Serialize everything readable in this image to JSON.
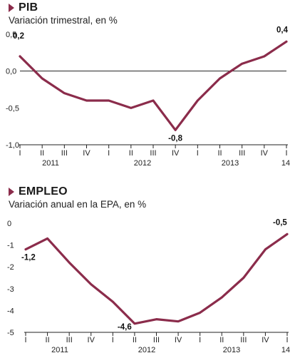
{
  "chart_data": [
    {
      "type": "line",
      "title": "PIB",
      "subtitle": "Variación trimestral, en %",
      "categories": [
        "I",
        "II",
        "III",
        "IV",
        "I",
        "II",
        "III",
        "IV",
        "I",
        "II",
        "III",
        "IV",
        "I"
      ],
      "years": [
        "2011",
        "2012",
        "2013",
        "14"
      ],
      "values": [
        0.2,
        -0.1,
        -0.3,
        -0.4,
        -0.4,
        -0.5,
        -0.4,
        -0.8,
        -0.4,
        -0.1,
        0.1,
        0.2,
        0.4
      ],
      "ylim": [
        -1.0,
        0.5
      ],
      "yticks": [
        0.5,
        0.0,
        -0.5,
        -1.0
      ],
      "ytick_labels": [
        "0,5",
        "0,0",
        "-0,5",
        "-1,0"
      ],
      "zero_line": true,
      "grid": false,
      "annotations": [
        {
          "index": 0,
          "text": "0,2"
        },
        {
          "index": 7,
          "text": "-0,8"
        },
        {
          "index": 12,
          "text": "0,4"
        }
      ],
      "line_color": "#8b2c4b"
    },
    {
      "type": "line",
      "title": "EMPLEO",
      "subtitle": "Variación anual en la EPA, en %",
      "categories": [
        "I",
        "II",
        "III",
        "IV",
        "I",
        "II",
        "III",
        "IV",
        "I",
        "II",
        "III",
        "IV",
        "I"
      ],
      "years": [
        "2011",
        "2012",
        "2013",
        "14"
      ],
      "values": [
        -1.2,
        -0.7,
        -1.8,
        -2.8,
        -3.6,
        -4.6,
        -4.4,
        -4.5,
        -4.1,
        -3.4,
        -2.5,
        -1.2,
        -0.5
      ],
      "ylim": [
        -5,
        0
      ],
      "yticks": [
        0,
        -1,
        -2,
        -3,
        -4,
        -5
      ],
      "ytick_labels": [
        "0",
        "-1",
        "-2",
        "-3",
        "-4",
        "-5"
      ],
      "zero_line": false,
      "grid": false,
      "annotations": [
        {
          "index": 0,
          "text": "-1,2"
        },
        {
          "index": 5,
          "text": "-4,6"
        },
        {
          "index": 12,
          "text": "-0,5"
        }
      ],
      "line_color": "#8b2c4b"
    }
  ]
}
